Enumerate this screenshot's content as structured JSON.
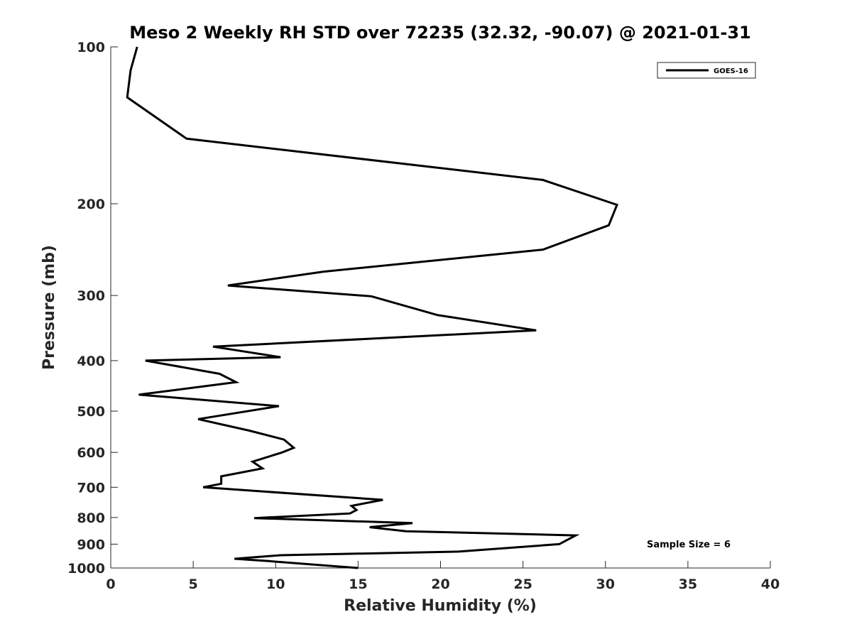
{
  "chart_data": {
    "type": "line",
    "title": "Meso 2 Weekly RH STD over 72235 (32.32, -90.07) @ 2021-01-31",
    "xlabel": "Relative Humidity (%)",
    "ylabel": "Pressure (mb)",
    "xlim": [
      0,
      40
    ],
    "ylim": [
      100,
      1000
    ],
    "yscale": "log",
    "y_reversed": true,
    "grid": false,
    "xticks": [
      0,
      5,
      10,
      15,
      20,
      25,
      30,
      35,
      40
    ],
    "xtick_labels": [
      "0",
      "5",
      "10",
      "15",
      "20",
      "25",
      "30",
      "35",
      "40"
    ],
    "yticks": [
      100,
      200,
      300,
      400,
      500,
      600,
      700,
      800,
      900,
      1000
    ],
    "ytick_labels": [
      "100",
      "200",
      "300",
      "400",
      "500",
      "600",
      "700",
      "800",
      "900",
      "1000"
    ],
    "legend_position": "top-right",
    "series": [
      {
        "name": "GOES-16",
        "color": "#000000",
        "x": [
          1.6,
          1.2,
          1.0,
          4.6,
          26.2,
          30.7,
          30.2,
          26.2,
          12.9,
          7.1,
          15.8,
          19.8,
          25.8,
          6.2,
          10.3,
          2.1,
          6.6,
          7.6,
          1.7,
          10.2,
          5.3,
          8.4,
          10.5,
          11.1,
          10.4,
          8.6,
          9.2,
          6.7,
          6.7,
          5.6,
          16.5,
          14.6,
          14.9,
          14.5,
          8.7,
          18.3,
          15.7,
          17.9,
          28.2,
          27.2,
          21.1,
          10.3,
          7.5,
          9.6,
          15.0
        ],
        "y": [
          100,
          111,
          125,
          150,
          180,
          201,
          220,
          245,
          270,
          287,
          301,
          327,
          350,
          376,
          394,
          400,
          424,
          440,
          465,
          489,
          518,
          545,
          567,
          588,
          600,
          625,
          644,
          667,
          689,
          700,
          740,
          760,
          774,
          786,
          802,
          820,
          835,
          850,
          866,
          900,
          930,
          945,
          960,
          970,
          1000
        ]
      }
    ],
    "annotations": [
      "Sample Size = 6"
    ]
  }
}
